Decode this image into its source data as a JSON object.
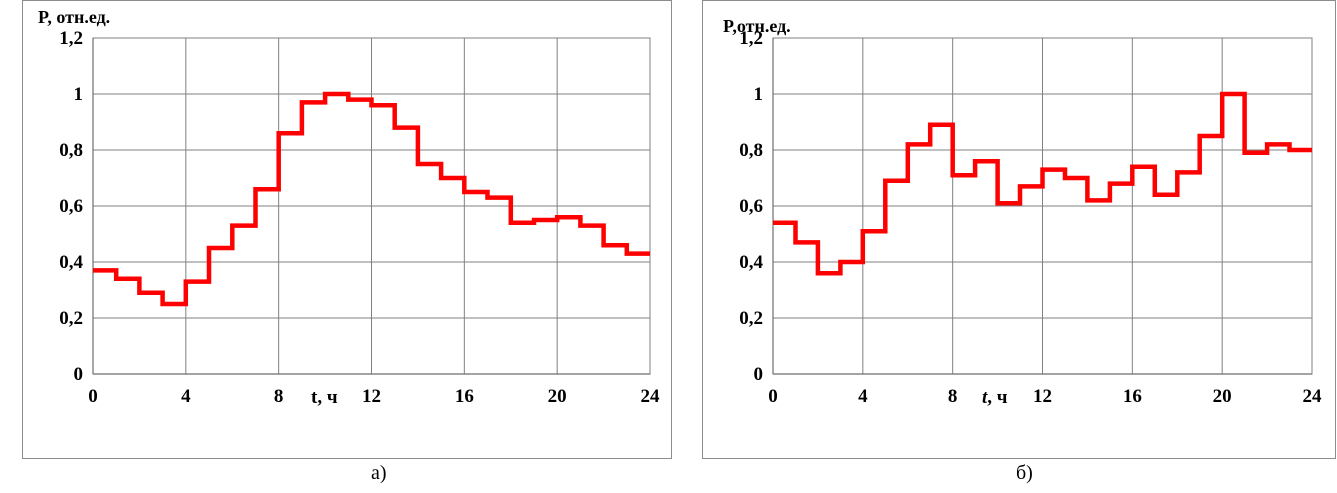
{
  "chart_data": [
    {
      "type": "line",
      "step": true,
      "ylabel": "P, отн.ед.",
      "xlabel": "t, ч",
      "xlim": [
        0,
        24
      ],
      "ylim": [
        0,
        1.2
      ],
      "xticks": [
        "0",
        "4",
        "8",
        "12",
        "16",
        "20",
        "24"
      ],
      "yticks": [
        "0",
        "0,2",
        "0,4",
        "0,6",
        "0,8",
        "1",
        "1,2"
      ],
      "grid": true,
      "color": "#ff0000",
      "series": [
        {
          "x": [
            0,
            1,
            2,
            3,
            4,
            5,
            6,
            7,
            8,
            9,
            10,
            11,
            12,
            13,
            14,
            15,
            16,
            17,
            18,
            19,
            20,
            21,
            22,
            23
          ],
          "values": [
            0.37,
            0.34,
            0.29,
            0.25,
            0.33,
            0.45,
            0.53,
            0.66,
            0.86,
            0.97,
            1.0,
            0.98,
            0.96,
            0.88,
            0.75,
            0.7,
            0.65,
            0.63,
            0.54,
            0.55,
            0.56,
            0.53,
            0.46,
            0.43
          ]
        }
      ],
      "caption": "а)"
    },
    {
      "type": "line",
      "step": true,
      "ylabel": "P,отн.ед.",
      "xlabel": "t, ч",
      "xlim": [
        0,
        24
      ],
      "ylim": [
        0,
        1.2
      ],
      "xticks": [
        "0",
        "4",
        "8",
        "12",
        "16",
        "20",
        "24"
      ],
      "yticks": [
        "0",
        "0,2",
        "0,4",
        "0,6",
        "0,8",
        "1",
        "1,2"
      ],
      "grid": true,
      "color": "#ff0000",
      "series": [
        {
          "x": [
            0,
            1,
            2,
            3,
            4,
            5,
            6,
            7,
            8,
            9,
            10,
            11,
            12,
            13,
            14,
            15,
            16,
            17,
            18,
            19,
            20,
            21,
            22,
            23
          ],
          "values": [
            0.54,
            0.47,
            0.36,
            0.4,
            0.51,
            0.69,
            0.82,
            0.89,
            0.71,
            0.76,
            0.61,
            0.67,
            0.73,
            0.7,
            0.62,
            0.68,
            0.74,
            0.64,
            0.72,
            0.85,
            1.0,
            0.79,
            0.82,
            0.8
          ]
        }
      ],
      "caption": "б)"
    }
  ]
}
